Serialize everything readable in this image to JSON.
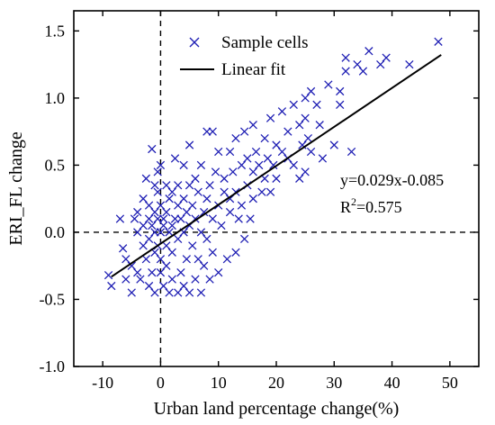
{
  "chart_data": {
    "type": "scatter",
    "title": "",
    "xlabel": "Urban land percentage change(%)",
    "ylabel": "ERI_FL change",
    "xlim": [
      -15,
      55
    ],
    "ylim": [
      -1.0,
      1.65
    ],
    "x_ticks": [
      -10,
      0,
      10,
      20,
      30,
      40,
      50
    ],
    "y_ticks": [
      -1.0,
      -0.5,
      0.0,
      0.5,
      1.0,
      1.5
    ],
    "x_tick_labels": [
      "-10",
      "0",
      "10",
      "20",
      "30",
      "40",
      "50"
    ],
    "y_tick_labels": [
      "-1.0",
      "-0.5",
      "0.0",
      "0.5",
      "1.0",
      "1.5"
    ],
    "reference_lines": {
      "x": 0,
      "y": 0,
      "style": "dashed"
    },
    "legend": {
      "position": "top-left",
      "entries": [
        {
          "label": "Sample cells",
          "marker": "x",
          "color": "#1f1fb4"
        },
        {
          "label": "Linear fit",
          "marker": "line",
          "color": "#000000"
        }
      ]
    },
    "annotation": {
      "equation": "y=0.029x-0.085",
      "r2_prefix": "R",
      "r2_sup": "2",
      "r2_suffix": "=0.575"
    },
    "fit": {
      "slope": 0.029,
      "intercept": -0.085,
      "x_range": [
        -8.5,
        48.5
      ]
    },
    "series": [
      {
        "name": "Sample cells",
        "marker": "x",
        "color": "#1f1fb4",
        "points": [
          [
            -9,
            -0.32
          ],
          [
            -8.5,
            -0.4
          ],
          [
            -7,
            0.1
          ],
          [
            -6.5,
            -0.12
          ],
          [
            -6,
            -0.35
          ],
          [
            -6,
            -0.2
          ],
          [
            -5,
            -0.45
          ],
          [
            -5,
            -0.25
          ],
          [
            -4.5,
            0.1
          ],
          [
            -4,
            -0.3
          ],
          [
            -4,
            0.0
          ],
          [
            -4,
            0.15
          ],
          [
            -3.5,
            -0.35
          ],
          [
            -3,
            -0.1
          ],
          [
            -3,
            0.05
          ],
          [
            -3,
            0.25
          ],
          [
            -2.5,
            -0.2
          ],
          [
            -2.5,
            0.4
          ],
          [
            -2,
            -0.4
          ],
          [
            -2,
            -0.05
          ],
          [
            -2,
            0.1
          ],
          [
            -2,
            0.2
          ],
          [
            -1.5,
            0.62
          ],
          [
            -1.5,
            -0.3
          ],
          [
            -1.5,
            0.05
          ],
          [
            -1,
            -0.15
          ],
          [
            -1,
            0.0
          ],
          [
            -1,
            0.15
          ],
          [
            -1,
            0.35
          ],
          [
            -1,
            -0.45
          ],
          [
            -0.5,
            0.1
          ],
          [
            -0.5,
            0.45
          ],
          [
            -0.5,
            -0.1
          ],
          [
            -0.5,
            0.3
          ],
          [
            0,
            -0.3
          ],
          [
            0,
            0.0
          ],
          [
            0,
            0.2
          ],
          [
            0,
            0.5
          ],
          [
            0,
            -0.2
          ],
          [
            0.5,
            0.1
          ],
          [
            0.5,
            -0.4
          ],
          [
            0.5,
            0.05
          ],
          [
            1,
            -0.25
          ],
          [
            1,
            0.15
          ],
          [
            1,
            0.35
          ],
          [
            1,
            -0.1
          ],
          [
            1.5,
            -0.45
          ],
          [
            1.5,
            0.25
          ],
          [
            1.5,
            0.0
          ],
          [
            2,
            -0.35
          ],
          [
            2,
            0.3
          ],
          [
            2,
            0.05
          ],
          [
            2,
            -0.15
          ],
          [
            2.5,
            0.55
          ],
          [
            2.5,
            0.1
          ],
          [
            3,
            -0.45
          ],
          [
            3,
            0.2
          ],
          [
            3,
            -0.05
          ],
          [
            3,
            0.35
          ],
          [
            3.5,
            -0.3
          ],
          [
            3.5,
            0.1
          ],
          [
            4,
            0.5
          ],
          [
            4,
            -0.4
          ],
          [
            4,
            0.0
          ],
          [
            4,
            0.25
          ],
          [
            4.5,
            -0.2
          ],
          [
            4.5,
            0.15
          ],
          [
            5,
            0.05
          ],
          [
            5,
            -0.45
          ],
          [
            5,
            0.35
          ],
          [
            5,
            0.65
          ],
          [
            5.5,
            -0.1
          ],
          [
            5.5,
            0.2
          ],
          [
            6,
            -0.35
          ],
          [
            6,
            0.1
          ],
          [
            6,
            0.4
          ],
          [
            6.5,
            -0.2
          ],
          [
            6.5,
            0.3
          ],
          [
            7,
            0.0
          ],
          [
            7,
            0.5
          ],
          [
            7,
            -0.45
          ],
          [
            7.5,
            0.15
          ],
          [
            7.5,
            -0.25
          ],
          [
            8,
            0.25
          ],
          [
            8,
            0.75
          ],
          [
            8,
            -0.05
          ],
          [
            8.5,
            -0.35
          ],
          [
            8.5,
            0.35
          ],
          [
            9,
            0.1
          ],
          [
            9,
            0.75
          ],
          [
            9,
            -0.15
          ],
          [
            9.5,
            0.45
          ],
          [
            10,
            0.2
          ],
          [
            10,
            -0.3
          ],
          [
            10,
            0.6
          ],
          [
            10.5,
            0.05
          ],
          [
            11,
            0.3
          ],
          [
            11,
            0.4
          ],
          [
            11.5,
            -0.2
          ],
          [
            12,
            0.15
          ],
          [
            12,
            0.6
          ],
          [
            12,
            0.25
          ],
          [
            12.5,
            0.45
          ],
          [
            13,
            -0.15
          ],
          [
            13,
            0.7
          ],
          [
            13,
            0.3
          ],
          [
            13.5,
            0.1
          ],
          [
            14,
            0.5
          ],
          [
            14,
            0.2
          ],
          [
            14.5,
            0.75
          ],
          [
            14.5,
            -0.05
          ],
          [
            15,
            0.35
          ],
          [
            15,
            0.55
          ],
          [
            15.5,
            0.1
          ],
          [
            16,
            0.45
          ],
          [
            16,
            0.8
          ],
          [
            16,
            0.25
          ],
          [
            16.5,
            0.6
          ],
          [
            17,
            0.5
          ],
          [
            17.5,
            0.3
          ],
          [
            18,
            0.7
          ],
          [
            18,
            0.4
          ],
          [
            18.5,
            0.55
          ],
          [
            19,
            0.85
          ],
          [
            19,
            0.3
          ],
          [
            19.5,
            0.5
          ],
          [
            20,
            0.65
          ],
          [
            20,
            0.4
          ],
          [
            21,
            0.6
          ],
          [
            21,
            0.9
          ],
          [
            22,
            0.55
          ],
          [
            22,
            0.75
          ],
          [
            23,
            0.5
          ],
          [
            23,
            0.95
          ],
          [
            24,
            0.4
          ],
          [
            24,
            0.8
          ],
          [
            24.5,
            0.65
          ],
          [
            25,
            0.45
          ],
          [
            25,
            1.0
          ],
          [
            25,
            0.85
          ],
          [
            25.5,
            0.7
          ],
          [
            26,
            0.6
          ],
          [
            26,
            1.05
          ],
          [
            27,
            0.95
          ],
          [
            27.5,
            0.8
          ],
          [
            28,
            0.55
          ],
          [
            29,
            1.1
          ],
          [
            30,
            0.65
          ],
          [
            31,
            1.05
          ],
          [
            31,
            0.95
          ],
          [
            32,
            1.3
          ],
          [
            32,
            1.2
          ],
          [
            33,
            0.6
          ],
          [
            34,
            1.25
          ],
          [
            35,
            1.2
          ],
          [
            36,
            1.35
          ],
          [
            38,
            1.25
          ],
          [
            39,
            1.3
          ],
          [
            43,
            1.25
          ],
          [
            48,
            1.42
          ]
        ]
      }
    ]
  }
}
